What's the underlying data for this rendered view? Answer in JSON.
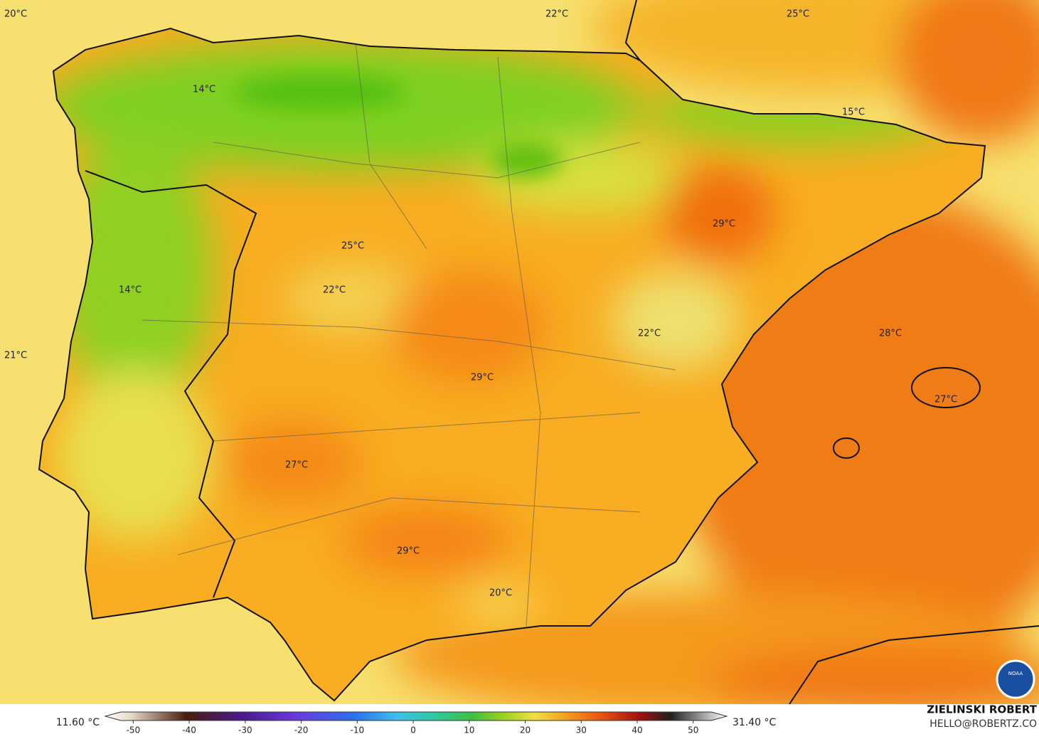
{
  "map": {
    "labels": [
      "20°C",
      "22°C",
      "25°C",
      "14°C",
      "15°C",
      "29°C",
      "25°C",
      "14°C",
      "22°C",
      "21°C",
      "22°C",
      "28°C",
      "29°C",
      "27°C",
      "27°C",
      "29°C",
      "20°C"
    ]
  },
  "colorbar": {
    "min_label": "11.60 °C",
    "max_label": "31.40 °C",
    "lim": [
      -55,
      56
    ],
    "ticks": [
      -50,
      -40,
      -30,
      -20,
      -10,
      0,
      10,
      20,
      30,
      40,
      50
    ]
  },
  "credit": {
    "name": "ZIELINSKI ROBERT",
    "contact": "HELLO@ROBERTZ.CO",
    "logo": "NOAA"
  }
}
